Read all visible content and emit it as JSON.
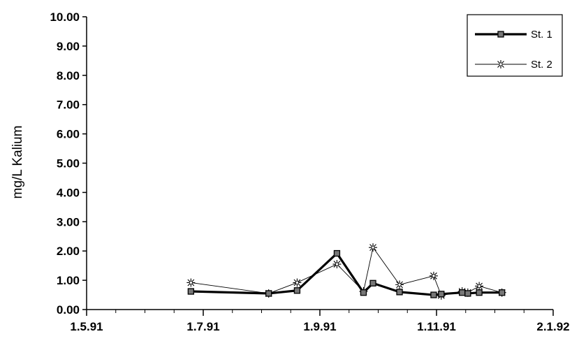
{
  "chart_data": {
    "type": "line",
    "title": "",
    "xlabel": "",
    "ylabel": "mg/L Kalium",
    "x_ticks": [
      "1.5.91",
      "1.7.91",
      "1.9.91",
      "1.11.91",
      "2.1.92"
    ],
    "xlim": [
      "1991-05-01",
      "1992-01-02"
    ],
    "ylim": [
      0,
      10
    ],
    "y_ticks": [
      "0.00",
      "1.00",
      "2.00",
      "3.00",
      "4.00",
      "5.00",
      "6.00",
      "7.00",
      "8.00",
      "9.00",
      "10.00"
    ],
    "grid": false,
    "legend": "top-right",
    "series": [
      {
        "name": "St. 1",
        "color": "#000000",
        "marker": "square",
        "points": [
          [
            "1991-06-25",
            0.62
          ],
          [
            "1991-08-05",
            0.55
          ],
          [
            "1991-08-20",
            0.65
          ],
          [
            "1991-09-10",
            1.92
          ],
          [
            "1991-09-24",
            0.58
          ],
          [
            "1991-09-29",
            0.9
          ],
          [
            "1991-10-13",
            0.6
          ],
          [
            "1991-10-31",
            0.5
          ],
          [
            "1991-11-04",
            0.53
          ],
          [
            "1991-11-15",
            0.58
          ],
          [
            "1991-11-18",
            0.55
          ],
          [
            "1991-11-24",
            0.58
          ],
          [
            "1991-12-06",
            0.58
          ]
        ]
      },
      {
        "name": "St. 2",
        "color": "#000000",
        "marker": "star",
        "points": [
          [
            "1991-06-25",
            0.92
          ],
          [
            "1991-08-05",
            0.55
          ],
          [
            "1991-08-20",
            0.92
          ],
          [
            "1991-09-10",
            1.55
          ],
          [
            "1991-09-24",
            0.62
          ],
          [
            "1991-09-29",
            2.12
          ],
          [
            "1991-10-13",
            0.85
          ],
          [
            "1991-10-31",
            1.15
          ],
          [
            "1991-11-04",
            0.48
          ],
          [
            "1991-11-15",
            0.62
          ],
          [
            "1991-11-18",
            0.58
          ],
          [
            "1991-11-24",
            0.8
          ],
          [
            "1991-12-06",
            0.58
          ]
        ]
      }
    ]
  }
}
